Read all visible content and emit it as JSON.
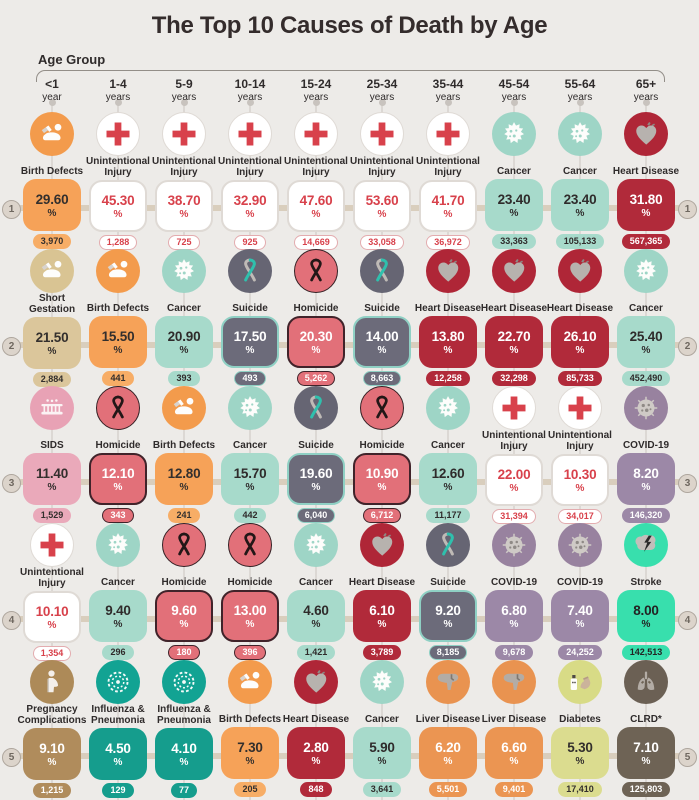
{
  "title": "The Top 10 Causes of Death by Age",
  "age_group_label": "Age Group",
  "percent_symbol": "%",
  "age_groups": [
    {
      "range": "<1",
      "unit": "year"
    },
    {
      "range": "1-4",
      "unit": "years"
    },
    {
      "range": "5-9",
      "unit": "years"
    },
    {
      "range": "10-14",
      "unit": "years"
    },
    {
      "range": "15-24",
      "unit": "years"
    },
    {
      "range": "25-34",
      "unit": "years"
    },
    {
      "range": "35-44",
      "unit": "years"
    },
    {
      "range": "45-54",
      "unit": "years"
    },
    {
      "range": "55-64",
      "unit": "years"
    },
    {
      "range": "65+",
      "unit": "years"
    }
  ],
  "styles": {
    "birth_defects": {
      "box": "#F6A258",
      "box_text": "#332F2D",
      "badge_bg": "#F7AD66",
      "badge_text": "#332F2D",
      "circle": "#F39B4C"
    },
    "unintentional": {
      "box": "#FFFFFF",
      "box_text": "#D8414B",
      "box_border": "#DFDAD5",
      "badge_bg": "#FFFFFF",
      "badge_text": "#D8414B",
      "badge_border": "#E3ACAF",
      "circle": "#FFFFFF",
      "circle_border": "#DFDAD5"
    },
    "cancer": {
      "box": "#A7DACB",
      "box_text": "#2F2B2B",
      "badge_bg": "#A7DACB",
      "badge_text": "#2F2B2B",
      "circle": "#9ED5C6"
    },
    "heart": {
      "box": "#B12A3A",
      "box_text": "#FFFFFF",
      "badge_bg": "#B12A3A",
      "badge_text": "#FFFFFF",
      "circle": "#AF2637"
    },
    "short_gestation": {
      "box": "#DBC69B",
      "box_text": "#332F2D",
      "badge_bg": "#DBC69B",
      "badge_text": "#332F2D",
      "circle": "#D9C493"
    },
    "suicide": {
      "box": "#6C6B7A",
      "box_text": "#FFFFFF",
      "box_border": "#8FD0C4",
      "badge_bg": "#6C6B7A",
      "badge_text": "#FFFFFF",
      "badge_border": "#8FD0C4",
      "circle": "#666573"
    },
    "homicide": {
      "box": "#E27079",
      "box_text": "#FFFFFF",
      "box_border": "#40232A",
      "badge_bg": "#E27079",
      "badge_text": "#FFFFFF",
      "badge_border": "#40232A",
      "circle": "#E27079",
      "circle_border": "#352024"
    },
    "sids": {
      "box": "#EAA9BA",
      "box_text": "#332F2D",
      "badge_bg": "#EAA9BA",
      "badge_text": "#332F2D",
      "circle": "#E8A2B5"
    },
    "covid": {
      "box": "#9C88A7",
      "box_text": "#FFFFFF",
      "badge_bg": "#9C88A7",
      "badge_text": "#FFFFFF",
      "circle": "#98829F"
    },
    "stroke": {
      "box": "#38DFAD",
      "box_text": "#232323",
      "badge_bg": "#38DFAD",
      "badge_text": "#232323",
      "circle": "#38DFAD"
    },
    "pregnancy": {
      "box": "#B08C5C",
      "box_text": "#FFFFFF",
      "badge_bg": "#B08C5C",
      "badge_text": "#FFFFFF",
      "circle": "#AD8A58"
    },
    "flu": {
      "box": "#159D8D",
      "box_text": "#FFFFFF",
      "badge_bg": "#159D8D",
      "badge_text": "#FFFFFF",
      "circle": "#12A393"
    },
    "liver": {
      "box": "#EB9552",
      "box_text": "#FFFFFF",
      "badge_bg": "#EB9552",
      "badge_text": "#FFFFFF",
      "circle": "#E99350"
    },
    "diabetes": {
      "box": "#DBDC8F",
      "box_text": "#332F2D",
      "badge_bg": "#DBDC8F",
      "badge_text": "#332F2D",
      "circle": "#D8DB86"
    },
    "clrd": {
      "box": "#6E6355",
      "box_text": "#FFFFFF",
      "badge_bg": "#6E6355",
      "badge_text": "#FFFFFF",
      "circle": "#6B6054"
    }
  },
  "chart_data": {
    "type": "table",
    "title": "The Top 10 Causes of Death by Age",
    "columns": [
      "<1 year",
      "1-4 years",
      "5-9 years",
      "10-14 years",
      "15-24 years",
      "25-34 years",
      "35-44 years",
      "45-54 years",
      "55-64 years",
      "65+ years"
    ],
    "value_units": {
      "percent": "share of deaths in age group (%)",
      "deaths": "number of deaths"
    },
    "rows": [
      {
        "rank": "1",
        "cells": [
          {
            "cause": "Birth Defects",
            "style": "birth_defects",
            "icon": "parent-and-baby-icon",
            "percent": "29.60",
            "deaths": "3,970"
          },
          {
            "cause": "Unintentional Injury",
            "style": "unintentional",
            "icon": "red-cross-icon",
            "percent": "45.30",
            "deaths": "1,288"
          },
          {
            "cause": "Unintentional Injury",
            "style": "unintentional",
            "icon": "red-cross-icon",
            "percent": "38.70",
            "deaths": "725"
          },
          {
            "cause": "Unintentional Injury",
            "style": "unintentional",
            "icon": "red-cross-icon",
            "percent": "32.90",
            "deaths": "925"
          },
          {
            "cause": "Unintentional Injury",
            "style": "unintentional",
            "icon": "red-cross-icon",
            "percent": "47.60",
            "deaths": "14,669"
          },
          {
            "cause": "Unintentional Injury",
            "style": "unintentional",
            "icon": "red-cross-icon",
            "percent": "53.60",
            "deaths": "33,058"
          },
          {
            "cause": "Unintentional Injury",
            "style": "unintentional",
            "icon": "red-cross-icon",
            "percent": "41.70",
            "deaths": "36,972"
          },
          {
            "cause": "Cancer",
            "style": "cancer",
            "icon": "cancer-cell-icon",
            "percent": "23.40",
            "deaths": "33,363"
          },
          {
            "cause": "Cancer",
            "style": "cancer",
            "icon": "cancer-cell-icon",
            "percent": "23.40",
            "deaths": "105,133"
          },
          {
            "cause": "Heart Disease",
            "style": "heart",
            "icon": "heart-icon",
            "percent": "31.80",
            "deaths": "567,365"
          }
        ]
      },
      {
        "rank": "2",
        "cells": [
          {
            "cause": "Short Gestation",
            "style": "short_gestation",
            "icon": "parent-and-baby-icon",
            "percent": "21.50",
            "deaths": "2,884"
          },
          {
            "cause": "Birth Defects",
            "style": "birth_defects",
            "icon": "parent-and-baby-icon",
            "percent": "15.50",
            "deaths": "441"
          },
          {
            "cause": "Cancer",
            "style": "cancer",
            "icon": "cancer-cell-icon",
            "percent": "20.90",
            "deaths": "393"
          },
          {
            "cause": "Suicide",
            "style": "suicide",
            "icon": "suicide-ribbon-icon",
            "percent": "17.50",
            "deaths": "493"
          },
          {
            "cause": "Homicide",
            "style": "homicide",
            "icon": "homicide-ribbon-icon",
            "percent": "20.30",
            "deaths": "5,262"
          },
          {
            "cause": "Suicide",
            "style": "suicide",
            "icon": "suicide-ribbon-icon",
            "percent": "14.00",
            "deaths": "8,663"
          },
          {
            "cause": "Heart Disease",
            "style": "heart",
            "icon": "heart-icon",
            "percent": "13.80",
            "deaths": "12,258"
          },
          {
            "cause": "Heart Disease",
            "style": "heart",
            "icon": "heart-icon",
            "percent": "22.70",
            "deaths": "32,298"
          },
          {
            "cause": "Heart Disease",
            "style": "heart",
            "icon": "heart-icon",
            "percent": "26.10",
            "deaths": "85,733"
          },
          {
            "cause": "Cancer",
            "style": "cancer",
            "icon": "cancer-cell-icon",
            "percent": "25.40",
            "deaths": "452,490"
          }
        ]
      },
      {
        "rank": "3",
        "cells": [
          {
            "cause": "SIDS",
            "style": "sids",
            "icon": "crib-icon",
            "percent": "11.40",
            "deaths": "1,529"
          },
          {
            "cause": "Homicide",
            "style": "homicide",
            "icon": "homicide-ribbon-icon",
            "percent": "12.10",
            "deaths": "343"
          },
          {
            "cause": "Birth Defects",
            "style": "birth_defects",
            "icon": "parent-and-baby-icon",
            "percent": "12.80",
            "deaths": "241"
          },
          {
            "cause": "Cancer",
            "style": "cancer",
            "icon": "cancer-cell-icon",
            "percent": "15.70",
            "deaths": "442"
          },
          {
            "cause": "Suicide",
            "style": "suicide",
            "icon": "suicide-ribbon-icon",
            "percent": "19.60",
            "deaths": "6,040"
          },
          {
            "cause": "Homicide",
            "style": "homicide",
            "icon": "homicide-ribbon-icon",
            "percent": "10.90",
            "deaths": "6,712"
          },
          {
            "cause": "Cancer",
            "style": "cancer",
            "icon": "cancer-cell-icon",
            "percent": "12.60",
            "deaths": "11,177"
          },
          {
            "cause": "Unintentional Injury",
            "style": "unintentional",
            "icon": "red-cross-icon",
            "percent": "22.00",
            "deaths": "31,394"
          },
          {
            "cause": "Unintentional Injury",
            "style": "unintentional",
            "icon": "red-cross-icon",
            "percent": "10.30",
            "deaths": "34,017"
          },
          {
            "cause": "COVID-19",
            "style": "covid",
            "icon": "covid-virus-icon",
            "percent": "8.20",
            "deaths": "146,320"
          }
        ]
      },
      {
        "rank": "4",
        "cells": [
          {
            "cause": "Unintentional Injury",
            "style": "unintentional",
            "icon": "red-cross-icon",
            "percent": "10.10",
            "deaths": "1,354"
          },
          {
            "cause": "Cancer",
            "style": "cancer",
            "icon": "cancer-cell-icon",
            "percent": "9.40",
            "deaths": "296"
          },
          {
            "cause": "Homicide",
            "style": "homicide",
            "icon": "homicide-ribbon-icon",
            "percent": "9.60",
            "deaths": "180"
          },
          {
            "cause": "Homicide",
            "style": "homicide",
            "icon": "homicide-ribbon-icon",
            "percent": "13.00",
            "deaths": "396"
          },
          {
            "cause": "Cancer",
            "style": "cancer",
            "icon": "cancer-cell-icon",
            "percent": "4.60",
            "deaths": "1,421"
          },
          {
            "cause": "Heart Disease",
            "style": "heart",
            "icon": "heart-icon",
            "percent": "6.10",
            "deaths": "3,789"
          },
          {
            "cause": "Suicide",
            "style": "suicide",
            "icon": "suicide-ribbon-icon",
            "percent": "9.20",
            "deaths": "8,185"
          },
          {
            "cause": "COVID-19",
            "style": "covid",
            "icon": "covid-virus-icon",
            "percent": "6.80",
            "deaths": "9,678"
          },
          {
            "cause": "COVID-19",
            "style": "covid",
            "icon": "covid-virus-icon",
            "percent": "7.40",
            "deaths": "24,252"
          },
          {
            "cause": "Stroke",
            "style": "stroke",
            "icon": "brain-stroke-icon",
            "percent": "8.00",
            "deaths": "142,513"
          }
        ]
      },
      {
        "rank": "5",
        "cells": [
          {
            "cause": "Pregnancy Complications",
            "style": "pregnancy",
            "icon": "pregnant-person-icon",
            "percent": "9.10",
            "deaths": "1,215"
          },
          {
            "cause": "Influenza & Pneumonia",
            "style": "flu",
            "icon": "flu-virus-icon",
            "percent": "4.50",
            "deaths": "129"
          },
          {
            "cause": "Influenza & Pneumonia",
            "style": "flu",
            "icon": "flu-virus-icon",
            "percent": "4.10",
            "deaths": "77"
          },
          {
            "cause": "Birth Defects",
            "style": "birth_defects",
            "icon": "parent-and-baby-icon",
            "percent": "7.30",
            "deaths": "205"
          },
          {
            "cause": "Heart Disease",
            "style": "heart",
            "icon": "heart-icon",
            "percent": "2.80",
            "deaths": "848"
          },
          {
            "cause": "Cancer",
            "style": "cancer",
            "icon": "cancer-cell-icon",
            "percent": "5.90",
            "deaths": "3,641"
          },
          {
            "cause": "Liver Disease",
            "style": "liver",
            "icon": "liver-icon",
            "percent": "6.20",
            "deaths": "5,501"
          },
          {
            "cause": "Liver Disease",
            "style": "liver",
            "icon": "liver-icon",
            "percent": "6.60",
            "deaths": "9,401"
          },
          {
            "cause": "Diabetes",
            "style": "diabetes",
            "icon": "insulin-icon",
            "percent": "5.30",
            "deaths": "17,410"
          },
          {
            "cause": "CLRD*",
            "style": "clrd",
            "icon": "lungs-icon",
            "percent": "7.10",
            "deaths": "125,803"
          }
        ]
      }
    ]
  }
}
